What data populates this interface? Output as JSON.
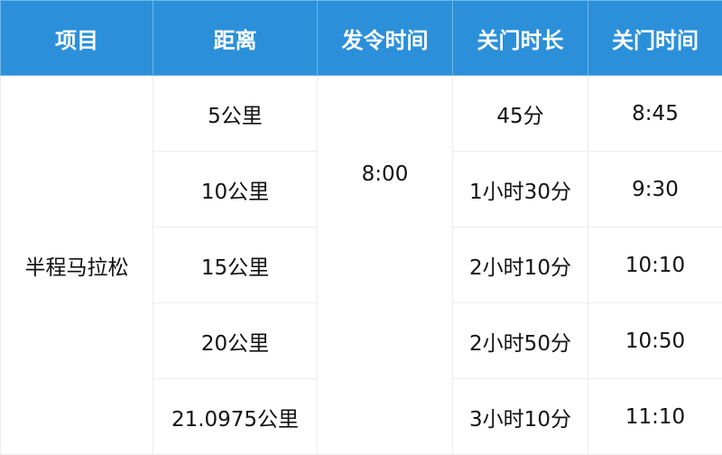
{
  "headers": [
    "项目",
    "距离",
    "发令时间",
    "关门时长",
    "关门时间"
  ],
  "event": "半程马拉松",
  "start_time": "8:00",
  "rows": [
    {
      "distance": "5公里",
      "duration": "45分",
      "cutoff": "8:45"
    },
    {
      "distance": "10公里",
      "duration": "1小时30分",
      "cutoff": "9:30"
    },
    {
      "distance": "15公里",
      "duration": "2小时10分",
      "cutoff": "10:10"
    },
    {
      "distance": "20公里",
      "duration": "2小时50分",
      "cutoff": "10:50"
    },
    {
      "distance": "21.0975公里",
      "duration": "3小时10分",
      "cutoff": "11:10"
    }
  ],
  "colors": {
    "header_bg": "#2b90d9",
    "header_text": "#ffffff"
  }
}
